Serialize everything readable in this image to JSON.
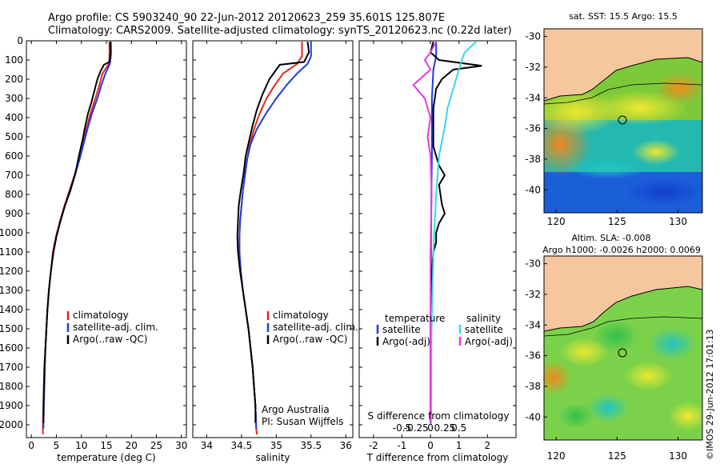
{
  "header": {
    "title_line1": "Argo profile: CS 5903240_90 22-Jun-2012 20120623_259 35.601S 125.807E",
    "title_line2": "Climatology: CARS2009. Satellite-adjusted climatology: synTS_20120623.nc (0.22d later)"
  },
  "colors": {
    "climatology": "#e3261c",
    "satellite": "#1f3be0",
    "argo": "#000000",
    "sal_satellite": "#33d8e8",
    "sal_argo": "#e23ae3",
    "land": "#f6c79f"
  },
  "chart_data": [
    {
      "type": "line",
      "panel": "temperature",
      "xlabel": "temperature (deg C)",
      "xlim": [
        -1,
        31
      ],
      "xticks": [
        0,
        5,
        10,
        15,
        20,
        25,
        30
      ],
      "ylim": [
        0,
        2050
      ],
      "yticks": [
        0,
        100,
        200,
        300,
        400,
        500,
        600,
        700,
        800,
        900,
        1000,
        1100,
        1200,
        1300,
        1400,
        1500,
        1600,
        1700,
        1800,
        1900,
        2000
      ],
      "y_reversed": true,
      "legend": [
        "climatology",
        "satellite-adj. clim.",
        "Argo(..raw -QC)"
      ],
      "series": [
        {
          "name": "climatology",
          "color": "#e3261c",
          "points": [
            [
              15.6,
              5
            ],
            [
              15.6,
              80
            ],
            [
              15.5,
              120
            ],
            [
              14.2,
              170
            ],
            [
              13.6,
              230
            ],
            [
              12.8,
              300
            ],
            [
              11.8,
              380
            ],
            [
              11.0,
              460
            ],
            [
              10.3,
              540
            ],
            [
              9.5,
              620
            ],
            [
              8.6,
              700
            ],
            [
              7.6,
              780
            ],
            [
              6.6,
              860
            ],
            [
              5.7,
              940
            ],
            [
              4.9,
              1020
            ],
            [
              4.3,
              1100
            ],
            [
              3.9,
              1200
            ],
            [
              3.5,
              1300
            ],
            [
              3.2,
              1400
            ],
            [
              3.0,
              1500
            ],
            [
              2.8,
              1600
            ],
            [
              2.6,
              1700
            ],
            [
              2.5,
              1800
            ],
            [
              2.4,
              1900
            ],
            [
              2.3,
              2000
            ],
            [
              2.3,
              2050
            ]
          ]
        },
        {
          "name": "satellite-adj. clim.",
          "color": "#1f3be0",
          "points": [
            [
              15.9,
              5
            ],
            [
              15.9,
              80
            ],
            [
              15.7,
              120
            ],
            [
              14.8,
              170
            ],
            [
              14.0,
              230
            ],
            [
              13.2,
              300
            ],
            [
              12.1,
              380
            ],
            [
              11.2,
              460
            ],
            [
              10.4,
              540
            ],
            [
              9.6,
              620
            ],
            [
              8.7,
              700
            ],
            [
              7.7,
              780
            ],
            [
              6.7,
              860
            ],
            [
              5.8,
              940
            ],
            [
              5.0,
              1020
            ],
            [
              4.4,
              1100
            ],
            [
              3.9,
              1200
            ],
            [
              3.5,
              1300
            ],
            [
              3.2,
              1400
            ],
            [
              3.0,
              1500
            ],
            [
              2.8,
              1600
            ],
            [
              2.7,
              1700
            ],
            [
              2.6,
              1800
            ],
            [
              2.5,
              1900
            ],
            [
              2.4,
              2000
            ],
            [
              2.4,
              2020
            ]
          ]
        },
        {
          "name": "Argo(..raw -QC)",
          "color": "#000000",
          "points": [
            [
              15.8,
              5
            ],
            [
              15.9,
              60
            ],
            [
              15.6,
              110
            ],
            [
              14.5,
              125
            ],
            [
              13.8,
              160
            ],
            [
              13.2,
              200
            ],
            [
              12.6,
              260
            ],
            [
              12.0,
              320
            ],
            [
              11.3,
              380
            ],
            [
              10.8,
              440
            ],
            [
              10.2,
              520
            ],
            [
              9.5,
              600
            ],
            [
              8.8,
              690
            ],
            [
              7.8,
              780
            ],
            [
              6.7,
              860
            ],
            [
              5.8,
              940
            ],
            [
              5.0,
              1020
            ],
            [
              4.4,
              1100
            ],
            [
              3.9,
              1200
            ],
            [
              3.5,
              1300
            ],
            [
              3.2,
              1400
            ],
            [
              3.0,
              1500
            ],
            [
              2.8,
              1600
            ],
            [
              2.6,
              1700
            ],
            [
              2.5,
              1800
            ],
            [
              2.4,
              1900
            ],
            [
              2.4,
              1990
            ]
          ]
        }
      ]
    },
    {
      "type": "line",
      "panel": "salinity",
      "xlabel": "salinity",
      "xlim": [
        33.8,
        36.1
      ],
      "xticks": [
        34,
        34.5,
        35,
        35.5,
        36
      ],
      "ylim": [
        0,
        2050
      ],
      "y_reversed": true,
      "legend": [
        "climatology",
        "satellite-adj. clim.",
        "Argo(..raw -QC)"
      ],
      "annotations": [
        "Argo Australia",
        "PI: Susan Wijffels"
      ],
      "series": [
        {
          "name": "climatology",
          "color": "#e3261c",
          "points": [
            [
              35.37,
              5
            ],
            [
              35.37,
              80
            ],
            [
              35.3,
              120
            ],
            [
              35.1,
              170
            ],
            [
              34.98,
              230
            ],
            [
              34.86,
              300
            ],
            [
              34.76,
              380
            ],
            [
              34.68,
              460
            ],
            [
              34.62,
              540
            ],
            [
              34.58,
              620
            ],
            [
              34.55,
              700
            ],
            [
              34.52,
              780
            ],
            [
              34.5,
              860
            ],
            [
              34.48,
              940
            ],
            [
              34.47,
              1020
            ],
            [
              34.47,
              1100
            ],
            [
              34.49,
              1200
            ],
            [
              34.52,
              1300
            ],
            [
              34.56,
              1400
            ],
            [
              34.6,
              1500
            ],
            [
              34.63,
              1600
            ],
            [
              34.66,
              1700
            ],
            [
              34.68,
              1800
            ],
            [
              34.7,
              1900
            ],
            [
              34.71,
              2000
            ],
            [
              34.72,
              2050
            ]
          ]
        },
        {
          "name": "satellite-adj. clim.",
          "color": "#1f3be0",
          "points": [
            [
              35.5,
              5
            ],
            [
              35.5,
              80
            ],
            [
              35.45,
              120
            ],
            [
              35.3,
              170
            ],
            [
              35.15,
              230
            ],
            [
              35.0,
              300
            ],
            [
              34.85,
              380
            ],
            [
              34.72,
              460
            ],
            [
              34.63,
              540
            ],
            [
              34.58,
              620
            ],
            [
              34.55,
              700
            ],
            [
              34.52,
              780
            ],
            [
              34.5,
              860
            ],
            [
              34.48,
              940
            ],
            [
              34.47,
              1020
            ],
            [
              34.47,
              1100
            ],
            [
              34.49,
              1200
            ],
            [
              34.52,
              1300
            ],
            [
              34.56,
              1400
            ],
            [
              34.6,
              1500
            ],
            [
              34.63,
              1600
            ],
            [
              34.66,
              1700
            ],
            [
              34.68,
              1800
            ],
            [
              34.7,
              1900
            ],
            [
              34.71,
              2000
            ],
            [
              34.71,
              2020
            ]
          ]
        },
        {
          "name": "Argo(..raw -QC)",
          "color": "#000000",
          "points": [
            [
              35.45,
              5
            ],
            [
              35.47,
              60
            ],
            [
              35.4,
              110
            ],
            [
              35.05,
              125
            ],
            [
              34.9,
              200
            ],
            [
              34.8,
              280
            ],
            [
              34.72,
              360
            ],
            [
              34.66,
              440
            ],
            [
              34.61,
              520
            ],
            [
              34.56,
              600
            ],
            [
              34.53,
              690
            ],
            [
              34.49,
              780
            ],
            [
              34.46,
              860
            ],
            [
              34.45,
              940
            ],
            [
              34.44,
              1020
            ],
            [
              34.45,
              1100
            ],
            [
              34.48,
              1200
            ],
            [
              34.52,
              1300
            ],
            [
              34.56,
              1400
            ],
            [
              34.6,
              1500
            ],
            [
              34.63,
              1600
            ],
            [
              34.66,
              1700
            ],
            [
              34.68,
              1800
            ],
            [
              34.7,
              1900
            ],
            [
              34.7,
              1990
            ]
          ]
        }
      ]
    },
    {
      "type": "line",
      "panel": "difference",
      "xlabel": "T difference from climatology",
      "xlabel_top": "S difference from climatology",
      "xlim": [
        -2.5,
        3.0
      ],
      "xticks": [
        -2,
        -1,
        0,
        1,
        2
      ],
      "xticks_top": [
        -0.5,
        -0.25,
        0,
        0.25,
        0.5
      ],
      "xticks_top_labels": [
        "-0.5",
        "-0.25",
        "0",
        "0.25",
        "0.5"
      ],
      "ylim": [
        0,
        2050
      ],
      "y_reversed": true,
      "legend_temperature": [
        "temperature",
        "satellite",
        "Argo(-adj)"
      ],
      "legend_salinity": [
        "salinity",
        "satellite",
        "Argo(-adj)"
      ],
      "series": [
        {
          "name": "T satellite",
          "color": "#1f3be0",
          "points": [
            [
              0.2,
              5
            ],
            [
              0.2,
              80
            ],
            [
              0.1,
              150
            ],
            [
              0.05,
              300
            ],
            [
              0.05,
              600
            ],
            [
              0.03,
              800
            ],
            [
              0.02,
              1100
            ],
            [
              0.01,
              1500
            ],
            [
              0.01,
              2000
            ]
          ]
        },
        {
          "name": "T Argo(-adj)",
          "color": "#000000",
          "points": [
            [
              0.1,
              5
            ],
            [
              0.0,
              60
            ],
            [
              0.3,
              100
            ],
            [
              1.8,
              130
            ],
            [
              0.8,
              150
            ],
            [
              0.4,
              200
            ],
            [
              0.2,
              250
            ],
            [
              0.1,
              350
            ],
            [
              0.1,
              450
            ],
            [
              0.1,
              550
            ],
            [
              0.3,
              650
            ],
            [
              0.5,
              700
            ],
            [
              0.3,
              750
            ],
            [
              0.4,
              850
            ],
            [
              0.5,
              900
            ],
            [
              0.3,
              950
            ],
            [
              0.2,
              1000
            ],
            [
              0.2,
              1050
            ],
            [
              0.1,
              1100
            ],
            [
              0.05,
              1200
            ],
            [
              0.0,
              1500
            ],
            [
              0.0,
              1990
            ]
          ]
        },
        {
          "name": "S satellite",
          "color": "#33d8e8",
          "points": [
            [
              0.8,
              5
            ],
            [
              0.6,
              60
            ],
            [
              0.55,
              100
            ],
            [
              0.5,
              150
            ],
            [
              0.4,
              250
            ],
            [
              0.3,
              350
            ],
            [
              0.25,
              450
            ],
            [
              0.15,
              600
            ],
            [
              0.1,
              800
            ],
            [
              0.05,
              1100
            ],
            [
              0.02,
              1500
            ],
            [
              0.01,
              2000
            ]
          ]
        },
        {
          "name": "S Argo(-adj)",
          "color": "#e23ae3",
          "points": [
            [
              0.1,
              5
            ],
            [
              0.0,
              60
            ],
            [
              -0.1,
              100
            ],
            [
              0.0,
              150
            ],
            [
              -0.3,
              230
            ],
            [
              -0.1,
              300
            ],
            [
              0.0,
              400
            ],
            [
              -0.05,
              500
            ],
            [
              0.0,
              600
            ],
            [
              0.02,
              800
            ],
            [
              0.0,
              1100
            ],
            [
              0.0,
              1500
            ],
            [
              0.0,
              1990
            ]
          ]
        }
      ]
    }
  ],
  "maps": [
    {
      "title": "sat. SST: 15.5  Argo: 15.5",
      "xticks": [
        "120",
        "125",
        "130"
      ],
      "yticks": [
        "-30",
        "-32",
        "-34",
        "-36",
        "-38",
        "-40"
      ],
      "xlim": [
        119,
        132
      ],
      "ylim": [
        -41.5,
        -29.5
      ],
      "marker": [
        125.8,
        -35.6
      ]
    },
    {
      "title_line1": "Altim. SLA: -0.008",
      "title_line2": "Argo h1000: -0.0026 h2000: 0.0069",
      "xticks": [
        "120",
        "125",
        "130"
      ],
      "yticks": [
        "-30",
        "-32",
        "-34",
        "-36",
        "-38",
        "-40"
      ],
      "xlim": [
        119,
        132
      ],
      "ylim": [
        -41.5,
        -29.5
      ],
      "marker": [
        125.8,
        -35.6
      ]
    }
  ],
  "footer": {
    "stamp": "©IMOS 29-Jun-2012 17:01:13"
  }
}
